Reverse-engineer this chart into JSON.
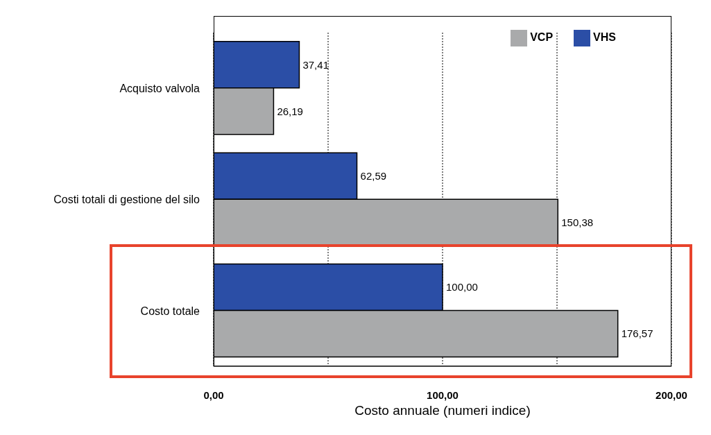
{
  "chart_data": {
    "type": "bar",
    "orientation": "horizontal",
    "xlabel": "Costo annuale (numeri indice)",
    "categories": [
      "Acquisto valvola",
      "Costi totali di gestione del silo",
      "Costo totale"
    ],
    "series": [
      {
        "name": "VHS",
        "color": "#2b4ea6",
        "values": [
          37.41,
          62.59,
          100
        ],
        "value_labels": [
          "37,41",
          "62,59",
          "100,00"
        ]
      },
      {
        "name": "VCP",
        "color": "#a9aaab",
        "values": [
          26.19,
          150.38,
          176.57
        ],
        "value_labels": [
          "26,19",
          "150,38",
          "176,57"
        ]
      }
    ],
    "xlim": [
      0,
      200
    ],
    "xticks": [
      {
        "value": 0,
        "label": "0,00"
      },
      {
        "value": 50,
        "label": null
      },
      {
        "value": 100,
        "label": "100,00"
      },
      {
        "value": 150,
        "label": null
      },
      {
        "value": 200,
        "label": "200,00"
      }
    ],
    "grid": "x",
    "legend": "top right"
  }
}
